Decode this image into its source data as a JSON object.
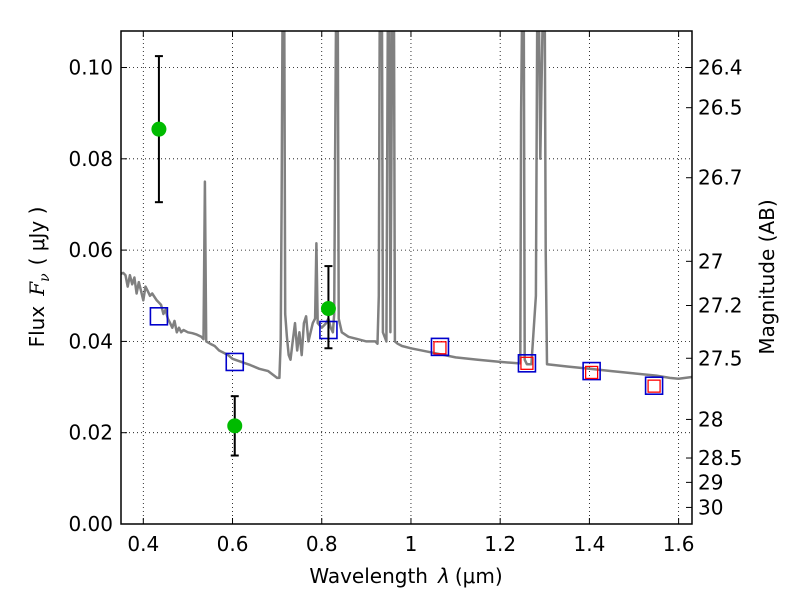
{
  "chart_data": {
    "type": "scatter",
    "title": "",
    "xlabel": "Wavelength",
    "xlabel_symbol": "λ",
    "xlabel_unit": "(μm)",
    "ylabel": "Flux",
    "ylabel_symbol": "F",
    "ylabel_subscript": "ν",
    "ylabel_unit": "( μJy )",
    "y2label": "Magnitude (AB)",
    "xlim": [
      0.35,
      1.63
    ],
    "ylim": [
      0.0,
      0.108
    ],
    "grid": true,
    "x_ticks": [
      {
        "value": 0.4,
        "label": "0.4"
      },
      {
        "value": 0.6,
        "label": "0.6"
      },
      {
        "value": 0.8,
        "label": "0.8"
      },
      {
        "value": 1.0,
        "label": "1"
      },
      {
        "value": 1.2,
        "label": "1.2"
      },
      {
        "value": 1.4,
        "label": "1.4"
      },
      {
        "value": 1.6,
        "label": "1.6"
      }
    ],
    "y_ticks": [
      {
        "value": 0.0,
        "label": "0.00"
      },
      {
        "value": 0.02,
        "label": "0.02"
      },
      {
        "value": 0.04,
        "label": "0.04"
      },
      {
        "value": 0.06,
        "label": "0.06"
      },
      {
        "value": 0.08,
        "label": "0.08"
      },
      {
        "value": 0.1,
        "label": "0.10"
      }
    ],
    "mag_ticks": [
      {
        "value": 26.4,
        "label": "26.4"
      },
      {
        "value": 26.5,
        "label": "26.5"
      },
      {
        "value": 26.7,
        "label": "26.7"
      },
      {
        "value": 27.0,
        "label": "27"
      },
      {
        "value": 27.2,
        "label": "27.2"
      },
      {
        "value": 27.5,
        "label": "27.5"
      },
      {
        "value": 28.0,
        "label": "28"
      },
      {
        "value": 28.5,
        "label": "28.5"
      },
      {
        "value": 29.0,
        "label": "29"
      },
      {
        "value": 30.0,
        "label": "30"
      }
    ],
    "series": [
      {
        "type": "line",
        "color": "#808080",
        "points": [
          [
            0.35,
            0.0548
          ],
          [
            0.355,
            0.055
          ],
          [
            0.36,
            0.0545
          ],
          [
            0.365,
            0.052
          ],
          [
            0.37,
            0.0545
          ],
          [
            0.375,
            0.0525
          ],
          [
            0.38,
            0.054
          ],
          [
            0.385,
            0.0505
          ],
          [
            0.39,
            0.053
          ],
          [
            0.395,
            0.051
          ],
          [
            0.4,
            0.049
          ],
          [
            0.405,
            0.052
          ],
          [
            0.41,
            0.051
          ],
          [
            0.415,
            0.05
          ],
          [
            0.42,
            0.0505
          ],
          [
            0.43,
            0.049
          ],
          [
            0.44,
            0.048
          ],
          [
            0.445,
            0.046
          ],
          [
            0.45,
            0.047
          ],
          [
            0.455,
            0.045
          ],
          [
            0.46,
            0.044
          ],
          [
            0.465,
            0.043
          ],
          [
            0.47,
            0.0445
          ],
          [
            0.475,
            0.042
          ],
          [
            0.48,
            0.043
          ],
          [
            0.485,
            0.042
          ],
          [
            0.49,
            0.0425
          ],
          [
            0.5,
            0.042
          ],
          [
            0.51,
            0.0418
          ],
          [
            0.52,
            0.0415
          ],
          [
            0.53,
            0.041
          ],
          [
            0.535,
            0.0405
          ],
          [
            0.538,
            0.075
          ],
          [
            0.541,
            0.04
          ],
          [
            0.55,
            0.0395
          ],
          [
            0.56,
            0.039
          ],
          [
            0.57,
            0.038
          ],
          [
            0.58,
            0.0375
          ],
          [
            0.59,
            0.037
          ],
          [
            0.6,
            0.0362
          ],
          [
            0.62,
            0.0355
          ],
          [
            0.64,
            0.0348
          ],
          [
            0.66,
            0.034
          ],
          [
            0.68,
            0.0335
          ],
          [
            0.7,
            0.032
          ],
          [
            0.705,
            0.032
          ],
          [
            0.708,
            0.04
          ],
          [
            0.71,
            0.07
          ],
          [
            0.712,
            0.11
          ],
          [
            0.716,
            0.11
          ],
          [
            0.718,
            0.046
          ],
          [
            0.722,
            0.041
          ],
          [
            0.726,
            0.037
          ],
          [
            0.73,
            0.036
          ],
          [
            0.735,
            0.04
          ],
          [
            0.74,
            0.044
          ],
          [
            0.745,
            0.038
          ],
          [
            0.75,
            0.042
          ],
          [
            0.755,
            0.037
          ],
          [
            0.76,
            0.044
          ],
          [
            0.765,
            0.0455
          ],
          [
            0.77,
            0.04
          ],
          [
            0.775,
            0.042
          ],
          [
            0.78,
            0.044
          ],
          [
            0.785,
            0.045
          ],
          [
            0.788,
            0.0615
          ],
          [
            0.791,
            0.044
          ],
          [
            0.8,
            0.043
          ],
          [
            0.81,
            0.044
          ],
          [
            0.815,
            0.045
          ],
          [
            0.82,
            0.043
          ],
          [
            0.825,
            0.042
          ],
          [
            0.828,
            0.046
          ],
          [
            0.83,
            0.08
          ],
          [
            0.832,
            0.11
          ],
          [
            0.836,
            0.11
          ],
          [
            0.838,
            0.045
          ],
          [
            0.845,
            0.042
          ],
          [
            0.86,
            0.041
          ],
          [
            0.88,
            0.0405
          ],
          [
            0.9,
            0.04
          ],
          [
            0.92,
            0.04
          ],
          [
            0.925,
            0.0395
          ],
          [
            0.928,
            0.05
          ],
          [
            0.93,
            0.11
          ],
          [
            0.935,
            0.11
          ],
          [
            0.937,
            0.042
          ],
          [
            0.945,
            0.04
          ],
          [
            0.948,
            0.11
          ],
          [
            0.952,
            0.11
          ],
          [
            0.954,
            0.042
          ],
          [
            0.958,
            0.11
          ],
          [
            0.962,
            0.11
          ],
          [
            0.964,
            0.04
          ],
          [
            0.97,
            0.0395
          ],
          [
            0.98,
            0.039
          ],
          [
            1.0,
            0.0385
          ],
          [
            1.05,
            0.0375
          ],
          [
            1.1,
            0.0365
          ],
          [
            1.15,
            0.036
          ],
          [
            1.2,
            0.0355
          ],
          [
            1.24,
            0.0352
          ],
          [
            1.245,
            0.0352
          ],
          [
            1.247,
            0.09
          ],
          [
            1.249,
            0.11
          ],
          [
            1.253,
            0.11
          ],
          [
            1.255,
            0.036
          ],
          [
            1.26,
            0.035
          ],
          [
            1.27,
            0.035
          ],
          [
            1.28,
            0.05
          ],
          [
            1.283,
            0.11
          ],
          [
            1.287,
            0.11
          ],
          [
            1.29,
            0.08
          ],
          [
            1.295,
            0.11
          ],
          [
            1.3,
            0.11
          ],
          [
            1.302,
            0.06
          ],
          [
            1.305,
            0.035
          ],
          [
            1.35,
            0.0345
          ],
          [
            1.4,
            0.034
          ],
          [
            1.45,
            0.0335
          ],
          [
            1.5,
            0.033
          ],
          [
            1.55,
            0.0325
          ],
          [
            1.58,
            0.032
          ],
          [
            1.6,
            0.0318
          ],
          [
            1.63,
            0.0322
          ]
        ]
      },
      {
        "type": "open-square",
        "color": "#0000cc",
        "points": [
          [
            0.435,
            0.0455
          ],
          [
            0.605,
            0.0355
          ],
          [
            0.815,
            0.0425
          ],
          [
            1.065,
            0.0388
          ],
          [
            1.26,
            0.0352
          ],
          [
            1.405,
            0.0335
          ],
          [
            1.545,
            0.0303
          ]
        ]
      },
      {
        "type": "open-square-small",
        "color": "#ff0000",
        "points": [
          [
            1.065,
            0.0386
          ],
          [
            1.26,
            0.0352
          ],
          [
            1.405,
            0.0332
          ],
          [
            1.545,
            0.0302
          ]
        ]
      },
      {
        "type": "errorbar-point",
        "color": "#00bb00",
        "points": [
          {
            "x": 0.435,
            "y": 0.0865,
            "ylow": 0.0705,
            "yhigh": 0.1025
          },
          {
            "x": 0.605,
            "y": 0.0215,
            "ylow": 0.015,
            "yhigh": 0.028
          },
          {
            "x": 0.815,
            "y": 0.0472,
            "ylow": 0.0385,
            "yhigh": 0.0565
          }
        ]
      }
    ]
  }
}
